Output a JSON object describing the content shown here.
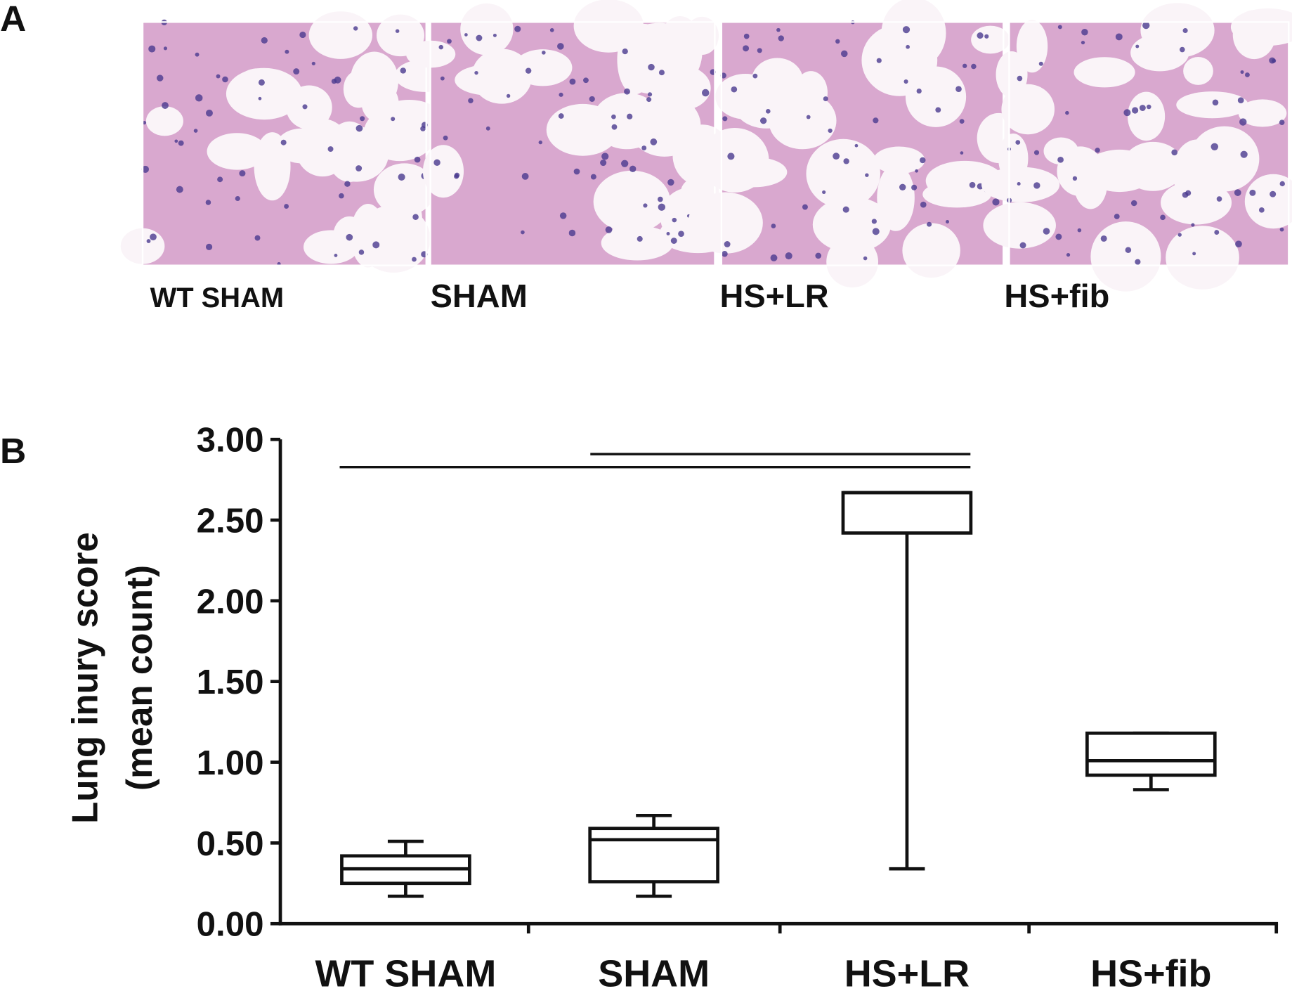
{
  "panel_a": {
    "label": "A",
    "images": [
      {
        "label": "WT SHAM"
      },
      {
        "label": "SHAM"
      },
      {
        "label": "HS+LR"
      },
      {
        "label": "HS+fib"
      }
    ]
  },
  "chart_data": {
    "type": "box",
    "panel_label": "B",
    "y_label": [
      "Lung inury score",
      "(mean count)"
    ],
    "categories": [
      "WT SHAM",
      "SHAM",
      "HS+LR",
      "HS+fib"
    ],
    "boxes": [
      {
        "whislo": 0.17,
        "q1": 0.25,
        "med": 0.34,
        "q3": 0.42,
        "whishi": 0.51
      },
      {
        "whislo": 0.17,
        "q1": 0.26,
        "med": 0.52,
        "q3": 0.59,
        "whishi": 0.67
      },
      {
        "whislo": 0.34,
        "q1": 2.42,
        "med": 2.67,
        "q3": 2.67,
        "whishi": 2.67
      },
      {
        "whislo": 0.83,
        "q1": 0.92,
        "med": 1.01,
        "q3": 1.18,
        "whishi": 1.18
      }
    ],
    "color": "#111111",
    "ylim": [
      0,
      3
    ],
    "yticks": [
      {
        "value": 0,
        "label": "0.00"
      },
      {
        "value": 0.5,
        "label": "0.50"
      },
      {
        "value": 1,
        "label": "1.00"
      },
      {
        "value": 1.5,
        "label": "1.50"
      },
      {
        "value": 2,
        "label": "2.00"
      },
      {
        "value": 2.5,
        "label": "2.50"
      },
      {
        "value": 3,
        "label": "3.00"
      }
    ]
  }
}
